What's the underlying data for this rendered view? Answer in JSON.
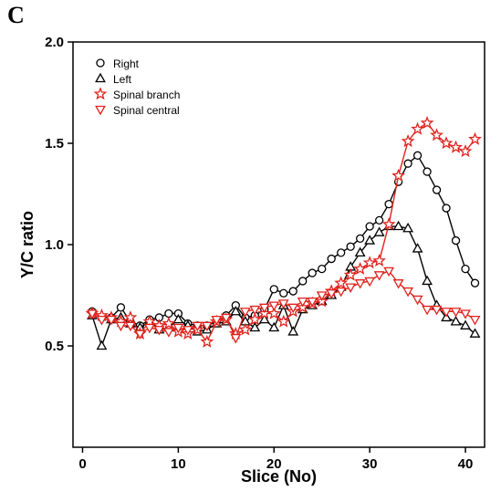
{
  "panel_label": "C",
  "chart_data": {
    "type": "line",
    "title": "",
    "xlabel": "Slice (No)",
    "ylabel": "Y/C ratio",
    "xlim": [
      -1,
      42
    ],
    "ylim": [
      0.0,
      2.0
    ],
    "xticks": [
      0,
      10,
      20,
      30,
      40
    ],
    "yticks": [
      0.5,
      1.0,
      1.5,
      2.0
    ],
    "ytick_labels": [
      "0.5",
      "1.0",
      "1.5",
      "2.0"
    ],
    "legend_position": "top-left",
    "grid": false,
    "x": [
      1,
      2,
      3,
      4,
      5,
      6,
      7,
      8,
      9,
      10,
      11,
      12,
      13,
      14,
      15,
      16,
      17,
      18,
      19,
      20,
      21,
      22,
      23,
      24,
      25,
      26,
      27,
      28,
      29,
      30,
      31,
      32,
      33,
      34,
      35,
      36,
      37,
      38,
      39,
      40,
      41
    ],
    "series": [
      {
        "name": "Right",
        "marker": "circle",
        "color": "#000000",
        "values": [
          0.67,
          0.64,
          0.64,
          0.69,
          0.62,
          0.6,
          0.63,
          0.64,
          0.66,
          0.66,
          0.61,
          0.6,
          0.6,
          0.62,
          0.65,
          0.7,
          0.64,
          0.65,
          0.68,
          0.78,
          0.76,
          0.77,
          0.82,
          0.86,
          0.88,
          0.93,
          0.96,
          0.99,
          1.03,
          1.09,
          1.12,
          1.2,
          1.31,
          1.4,
          1.44,
          1.36,
          1.27,
          1.18,
          1.02,
          0.88,
          0.81
        ]
      },
      {
        "name": "Left",
        "marker": "triangle-up",
        "color": "#000000",
        "values": [
          0.65,
          0.5,
          0.63,
          0.64,
          0.61,
          0.59,
          0.62,
          0.58,
          0.59,
          0.63,
          0.6,
          0.57,
          0.58,
          0.61,
          0.62,
          0.67,
          0.62,
          0.59,
          0.63,
          0.59,
          0.7,
          0.57,
          0.68,
          0.7,
          0.72,
          0.75,
          0.79,
          0.89,
          0.96,
          1.02,
          1.06,
          1.09,
          1.09,
          1.08,
          0.98,
          0.82,
          0.7,
          0.64,
          0.62,
          0.6,
          0.56
        ]
      },
      {
        "name": "Spinal branch",
        "marker": "star",
        "color": "#e0221d",
        "values": [
          0.66,
          0.65,
          0.64,
          0.62,
          0.64,
          0.56,
          0.62,
          0.6,
          0.61,
          0.57,
          0.56,
          0.58,
          0.52,
          0.62,
          0.63,
          0.56,
          0.58,
          0.63,
          0.66,
          0.66,
          0.62,
          0.67,
          0.69,
          0.71,
          0.72,
          0.77,
          0.81,
          0.85,
          0.88,
          0.91,
          0.92,
          1.1,
          1.34,
          1.51,
          1.57,
          1.6,
          1.54,
          1.5,
          1.48,
          1.46,
          1.52
        ]
      },
      {
        "name": "Spinal central",
        "marker": "triangle-down",
        "color": "#e0221d",
        "values": [
          0.66,
          0.63,
          0.63,
          0.6,
          0.6,
          0.56,
          0.59,
          0.58,
          0.57,
          0.59,
          0.58,
          0.6,
          0.6,
          0.63,
          0.64,
          0.54,
          0.67,
          0.68,
          0.69,
          0.7,
          0.71,
          0.69,
          0.72,
          0.72,
          0.75,
          0.76,
          0.77,
          0.79,
          0.81,
          0.82,
          0.85,
          0.87,
          0.81,
          0.77,
          0.73,
          0.68,
          0.68,
          0.67,
          0.67,
          0.66,
          0.63
        ]
      }
    ]
  }
}
